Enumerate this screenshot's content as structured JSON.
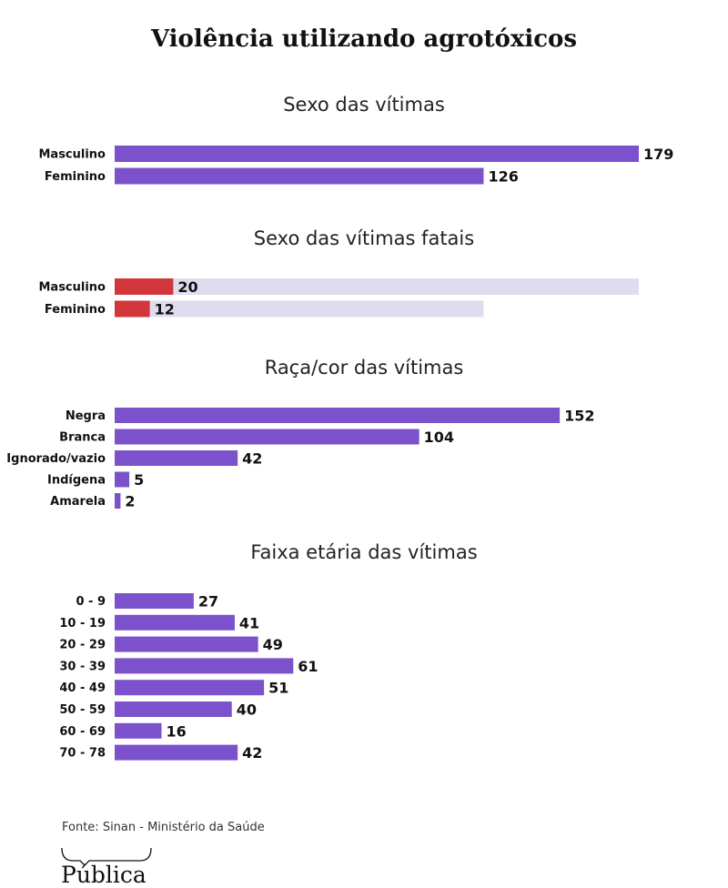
{
  "header": {
    "title": "Violência utilizando agrotóxicos"
  },
  "chart_data": [
    {
      "type": "bar",
      "orientation": "horizontal",
      "title": "Sexo das vítimas",
      "categories": [
        "Masculino",
        "Feminino"
      ],
      "values": [
        179,
        126
      ],
      "xlim": [
        0,
        179
      ],
      "color": "#7b52cc"
    },
    {
      "type": "bar",
      "orientation": "horizontal",
      "title": "Sexo das vítimas fatais",
      "categories": [
        "Masculino",
        "Feminino"
      ],
      "values": [
        20,
        12
      ],
      "background_values": [
        179,
        126
      ],
      "xlim": [
        0,
        179
      ],
      "color": "#d0363a",
      "background_color": "#e0dcef"
    },
    {
      "type": "bar",
      "orientation": "horizontal",
      "title": "Raça/cor das vítimas",
      "categories": [
        "Negra",
        "Branca",
        "Ignorado/vazio",
        "Indígena",
        "Amarela"
      ],
      "values": [
        152,
        104,
        42,
        5,
        2
      ],
      "xlim": [
        0,
        179
      ],
      "color": "#7b52cc"
    },
    {
      "type": "bar",
      "orientation": "horizontal",
      "title": "Faixa etária das vítimas",
      "categories": [
        "0 - 9",
        "10 - 19",
        "20 - 29",
        "30 - 39",
        "40 - 49",
        "50 - 59",
        "60 - 69",
        "70 - 78"
      ],
      "values": [
        27,
        41,
        49,
        61,
        51,
        40,
        16,
        42
      ],
      "xlim": [
        0,
        179
      ],
      "color": "#7b52cc"
    }
  ],
  "footer": {
    "source": "Fonte: Sinan - Ministério da Saúde",
    "logo": "Pública"
  }
}
